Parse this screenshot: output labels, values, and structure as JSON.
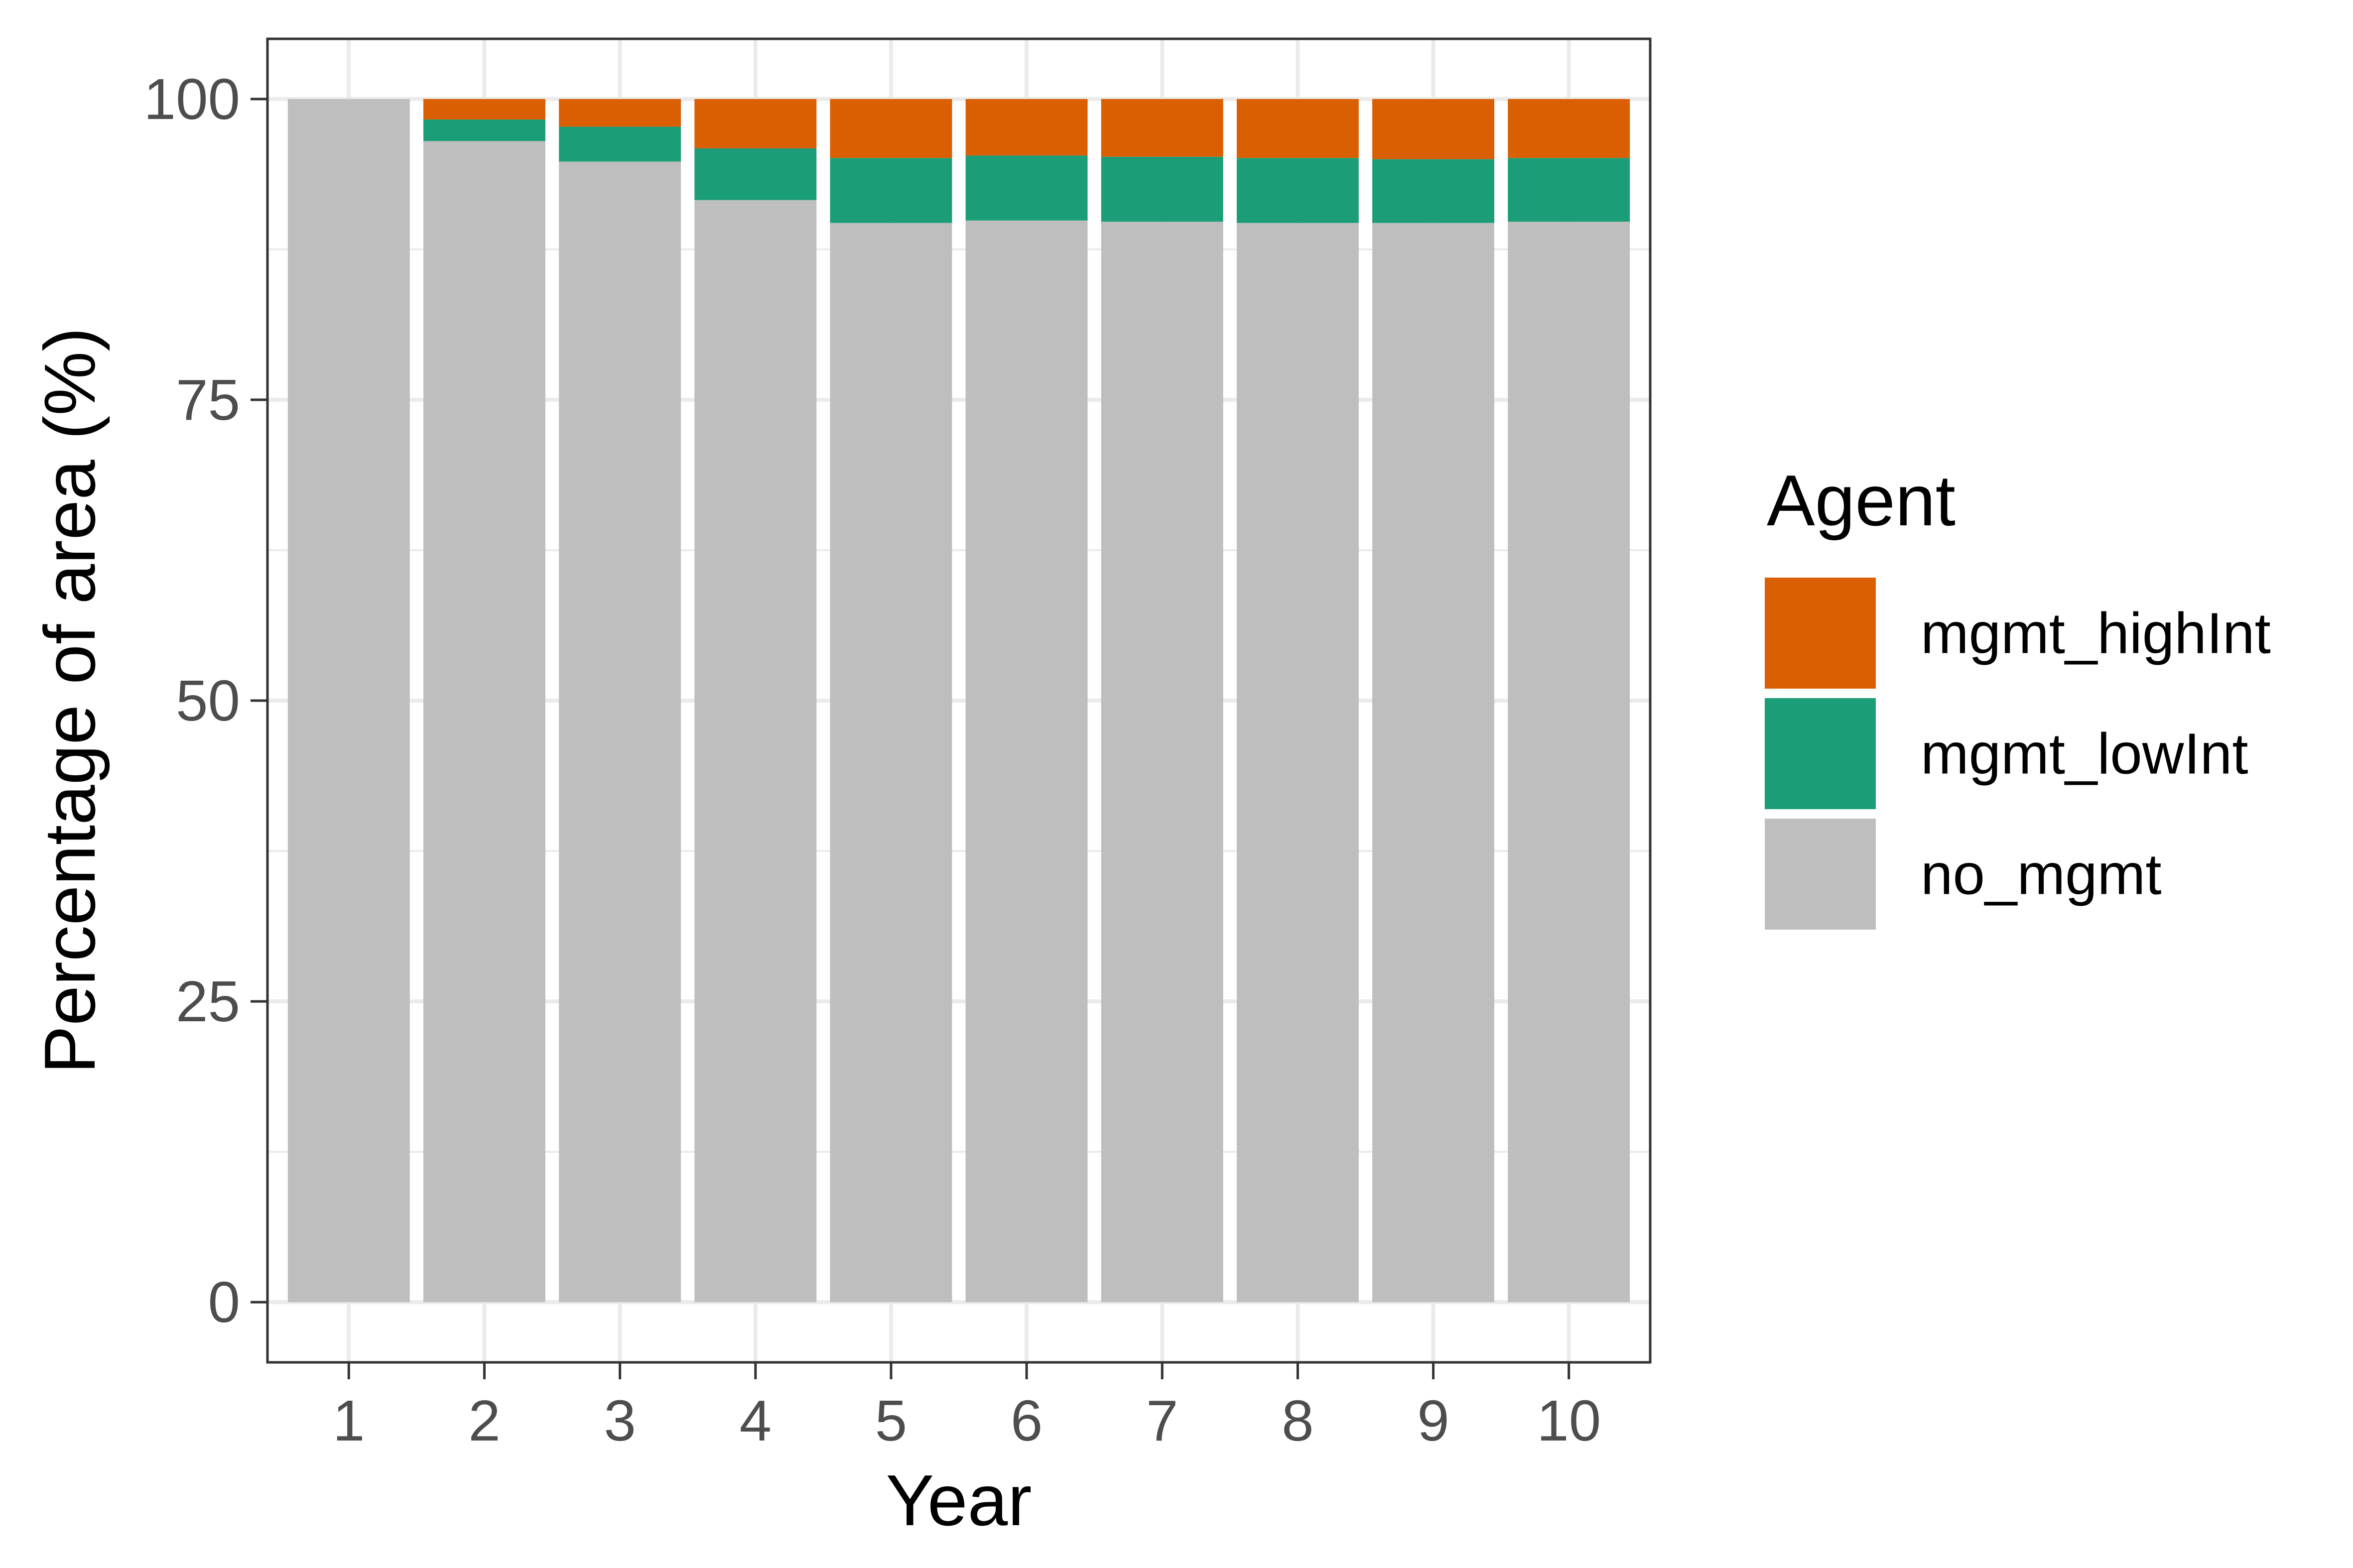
{
  "chart_data": {
    "type": "bar",
    "stacked": true,
    "xlabel": "Year",
    "ylabel": "Percentage of area (%)",
    "categories": [
      "1",
      "2",
      "3",
      "4",
      "5",
      "6",
      "7",
      "8",
      "9",
      "10"
    ],
    "ylim": [
      -5,
      105
    ],
    "yticks": [
      0,
      25,
      50,
      75,
      100
    ],
    "grid": true,
    "legend": {
      "title": "Agent",
      "placement": "right"
    },
    "series": [
      {
        "name": "no_mgmt",
        "color": "#BEBEBE",
        "values": [
          100,
          96.5,
          94.8,
          91.6,
          89.7,
          89.9,
          89.8,
          89.7,
          89.7,
          89.8
        ]
      },
      {
        "name": "mgmt_lowInt",
        "color": "#1B9E77",
        "values": [
          0,
          1.8,
          2.9,
          4.3,
          5.4,
          5.4,
          5.4,
          5.4,
          5.3,
          5.3
        ]
      },
      {
        "name": "mgmt_highInt",
        "color": "#D95F02",
        "values": [
          0,
          1.7,
          2.3,
          4.1,
          4.9,
          4.7,
          4.8,
          4.9,
          5.0,
          4.9
        ]
      }
    ],
    "legend_order": [
      "mgmt_highInt",
      "mgmt_lowInt",
      "no_mgmt"
    ]
  }
}
